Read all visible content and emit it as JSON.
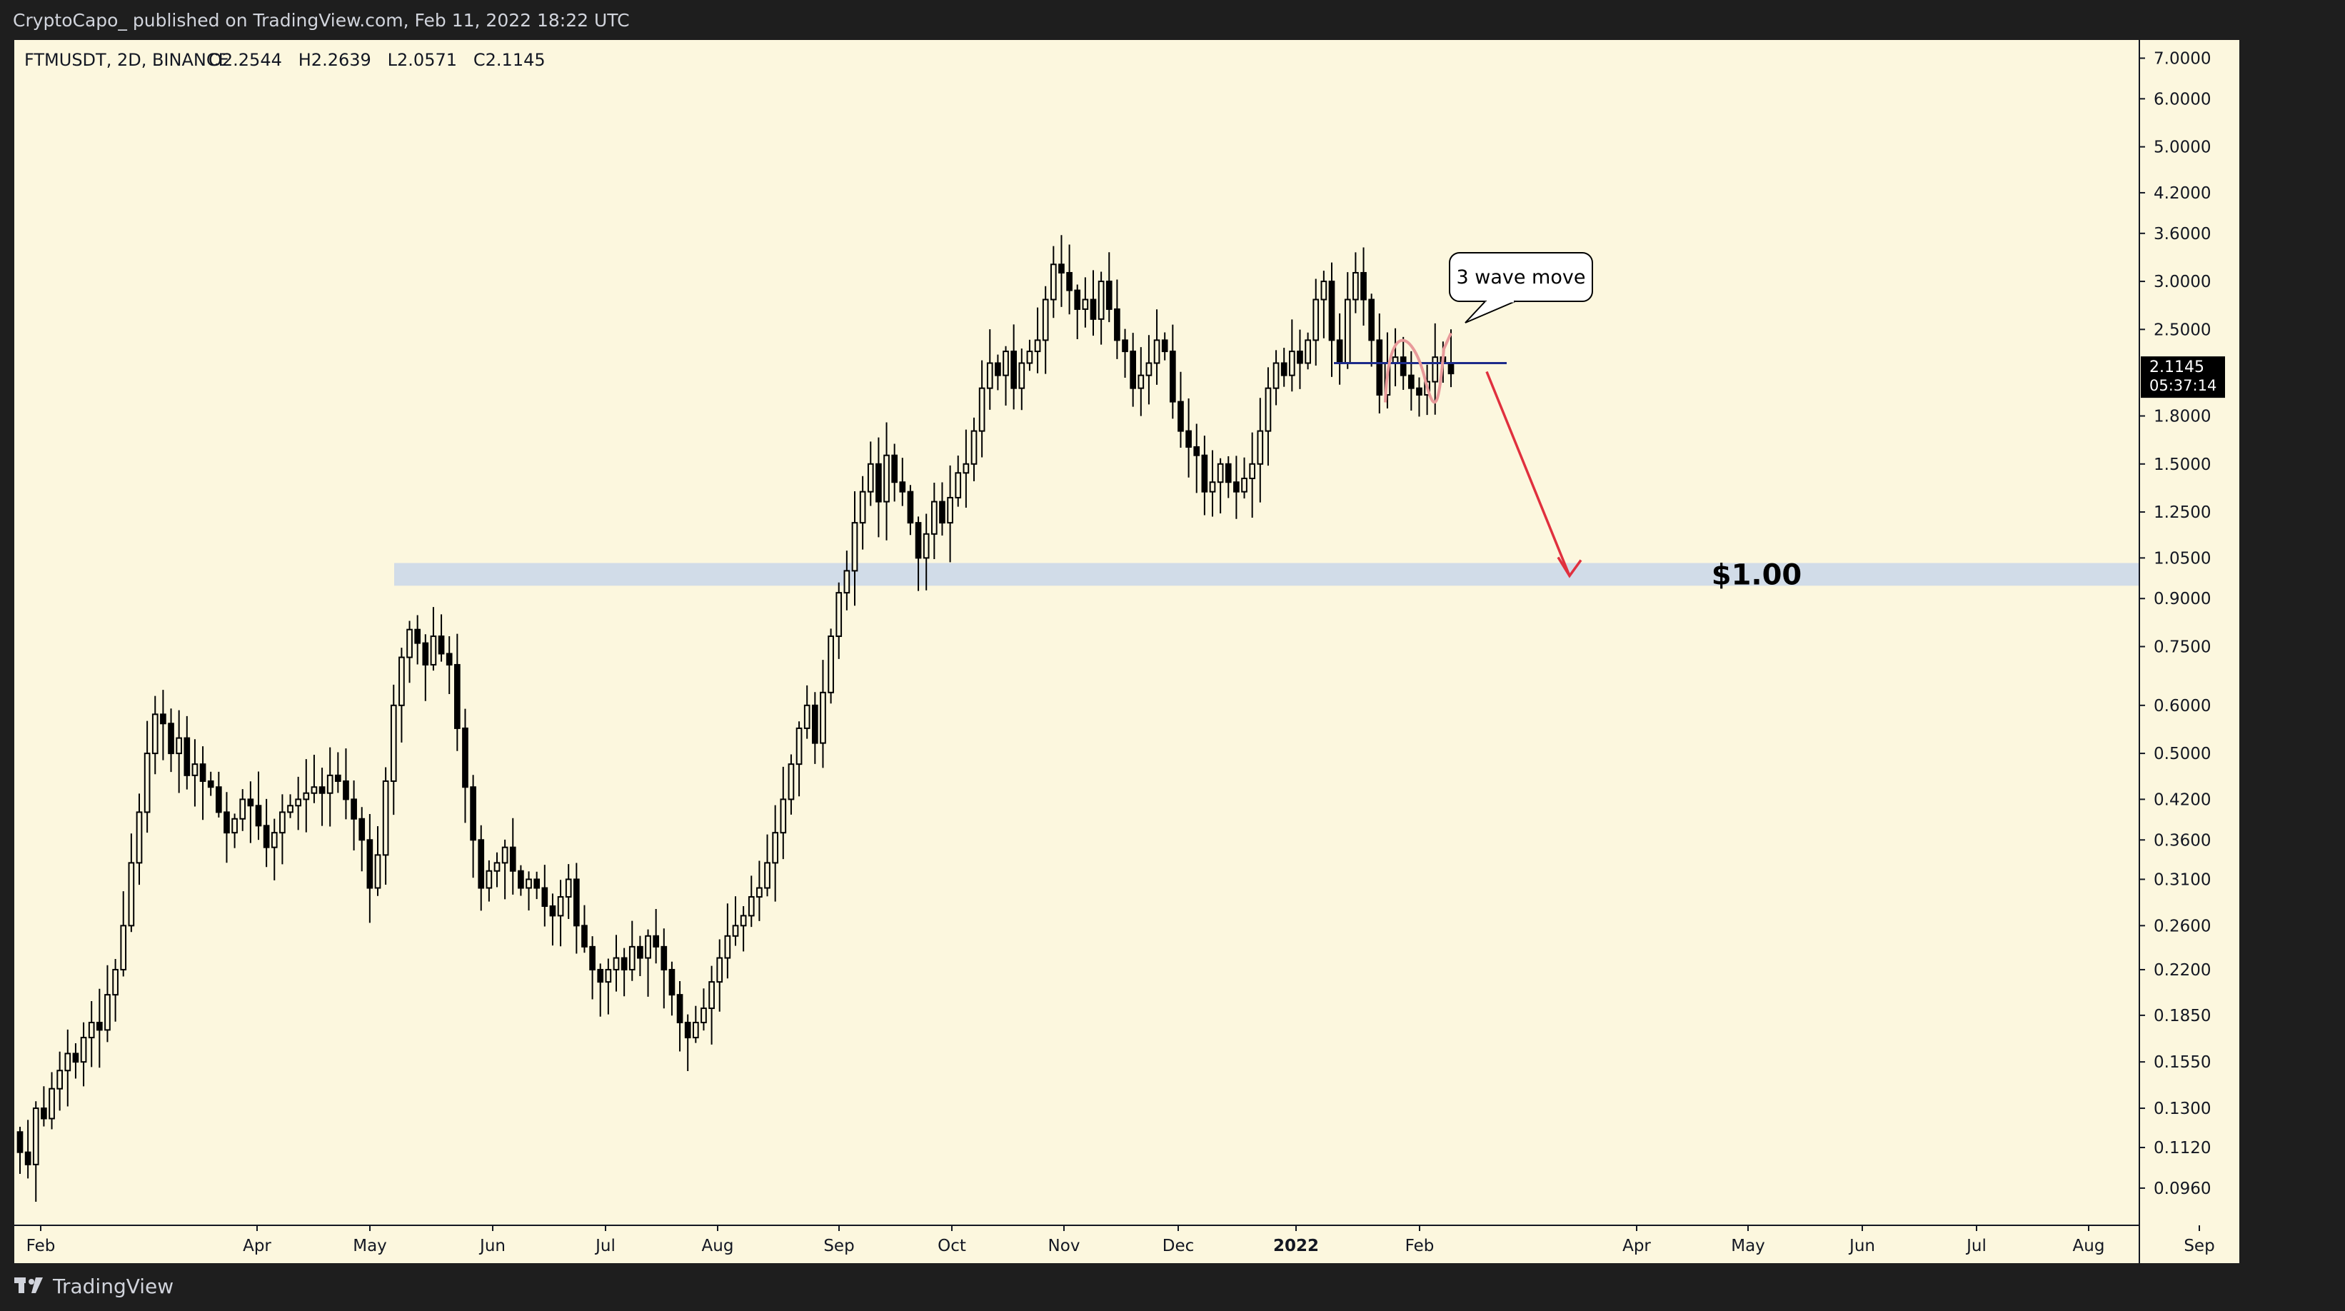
{
  "header": {
    "publish_text": "CryptoCapo_ published on TradingView.com, Feb 11, 2022 18:22 UTC"
  },
  "footer": {
    "brand": "TradingView",
    "brand_icon": "tradingview-logo-icon"
  },
  "colors": {
    "background": "#fcf7de",
    "frame": "#1e1e1e",
    "candle": "#000000",
    "zone": "#c9d7ea",
    "arrow": "#e0303e",
    "level_line": "#1d2b8a",
    "wave_marker": "#e89a9a"
  },
  "chart_data": {
    "type": "candlestick",
    "symbol_info": "FTMUSDT, 2D, BINANCE",
    "ohlc_label": "O2.2544   H2.2639   L2.0571   C2.1145",
    "y_scale": "log",
    "ylim": [
      0.088,
      7.3
    ],
    "y_ticks": [
      "7.0000",
      "6.0000",
      "5.0000",
      "4.2000",
      "3.6000",
      "3.0000",
      "2.5000",
      "1.8000",
      "1.5000",
      "1.2500",
      "1.0500",
      "0.9000",
      "0.7500",
      "0.6000",
      "0.5000",
      "0.4200",
      "0.3600",
      "0.3100",
      "0.2600",
      "0.2200",
      "0.1850",
      "0.1550",
      "0.1300",
      "0.1120",
      "0.0960"
    ],
    "x_labels": [
      "Feb",
      "Apr",
      "May",
      "Jun",
      "Jul",
      "Aug",
      "Sep",
      "Oct",
      "Nov",
      "Dec",
      "2022",
      "Feb",
      "Apr",
      "May",
      "Jun",
      "Jul",
      "Aug",
      "Sep"
    ],
    "price_tag": {
      "price": "2.1145",
      "countdown": "05:37:14"
    },
    "zone": {
      "low": 0.945,
      "high": 1.03,
      "label": "$1.00"
    },
    "level_line": 2.2,
    "callout": "3 wave move",
    "close_prices": [
      0.11,
      0.105,
      0.13,
      0.125,
      0.14,
      0.15,
      0.16,
      0.155,
      0.17,
      0.18,
      0.175,
      0.2,
      0.22,
      0.26,
      0.33,
      0.4,
      0.5,
      0.58,
      0.56,
      0.5,
      0.53,
      0.46,
      0.48,
      0.45,
      0.44,
      0.4,
      0.37,
      0.39,
      0.42,
      0.41,
      0.38,
      0.35,
      0.37,
      0.4,
      0.41,
      0.42,
      0.43,
      0.44,
      0.43,
      0.46,
      0.45,
      0.42,
      0.39,
      0.36,
      0.3,
      0.34,
      0.45,
      0.6,
      0.72,
      0.8,
      0.76,
      0.7,
      0.78,
      0.73,
      0.7,
      0.55,
      0.44,
      0.36,
      0.3,
      0.32,
      0.33,
      0.35,
      0.32,
      0.3,
      0.31,
      0.3,
      0.28,
      0.27,
      0.29,
      0.31,
      0.26,
      0.24,
      0.22,
      0.21,
      0.22,
      0.23,
      0.22,
      0.24,
      0.23,
      0.25,
      0.24,
      0.22,
      0.2,
      0.18,
      0.17,
      0.18,
      0.19,
      0.21,
      0.23,
      0.25,
      0.26,
      0.27,
      0.29,
      0.3,
      0.33,
      0.37,
      0.42,
      0.48,
      0.55,
      0.6,
      0.52,
      0.63,
      0.78,
      0.92,
      1.0,
      1.2,
      1.35,
      1.5,
      1.3,
      1.55,
      1.4,
      1.35,
      1.2,
      1.05,
      1.15,
      1.3,
      1.2,
      1.32,
      1.45,
      1.5,
      1.7,
      2.0,
      2.2,
      2.1,
      2.3,
      2.0,
      2.2,
      2.3,
      2.4,
      2.8,
      3.2,
      3.1,
      2.9,
      2.7,
      2.8,
      2.6,
      3.0,
      2.7,
      2.4,
      2.3,
      2.0,
      2.1,
      2.2,
      2.4,
      2.3,
      1.9,
      1.7,
      1.6,
      1.55,
      1.35,
      1.4,
      1.5,
      1.4,
      1.35,
      1.42,
      1.5,
      1.7,
      2.0,
      2.2,
      2.1,
      2.3,
      2.2,
      2.4,
      2.8,
      3.0,
      2.4,
      2.2,
      2.8,
      3.1,
      2.8,
      2.4,
      1.95,
      2.2,
      2.25,
      2.1,
      2.0,
      1.95,
      2.05,
      2.25,
      2.2,
      2.1145
    ]
  }
}
